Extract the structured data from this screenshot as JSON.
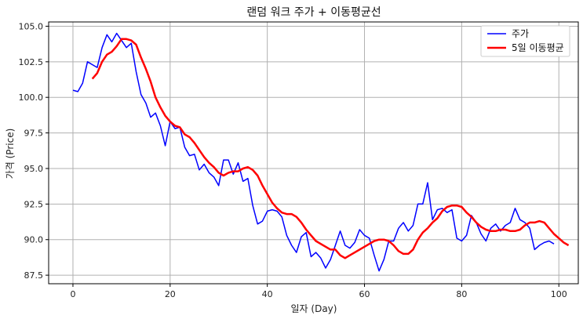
{
  "chart_data": {
    "type": "line",
    "title": "랜덤 워크 주가 + 이동평균선",
    "xlabel": "일자 (Day)",
    "ylabel": "가격 (Price)",
    "xlim": [
      -5,
      104
    ],
    "ylim": [
      86.9,
      105.3
    ],
    "xticks": [
      0,
      20,
      40,
      60,
      80,
      100
    ],
    "yticks": [
      87.5,
      90.0,
      92.5,
      95.0,
      97.5,
      100.0,
      102.5,
      105.0
    ],
    "grid": true,
    "legend_position": "top-right",
    "series": [
      {
        "name": "주가",
        "color": "#0000ff",
        "x_start": 0,
        "values": [
          100.5,
          100.4,
          101.0,
          102.5,
          102.3,
          102.1,
          103.5,
          104.4,
          103.9,
          104.5,
          104.0,
          103.5,
          103.8,
          101.8,
          100.2,
          99.6,
          98.6,
          98.9,
          98.0,
          96.6,
          98.3,
          97.8,
          97.9,
          96.5,
          95.9,
          96.0,
          94.9,
          95.3,
          94.7,
          94.4,
          93.8,
          95.6,
          95.6,
          94.6,
          95.4,
          94.1,
          94.3,
          92.4,
          91.1,
          91.3,
          92.0,
          92.1,
          92.0,
          91.6,
          90.3,
          89.6,
          89.1,
          90.2,
          90.5,
          88.8,
          89.1,
          88.7,
          88.0,
          88.6,
          89.6,
          90.6,
          89.6,
          89.4,
          89.8,
          90.7,
          90.3,
          90.1,
          88.9,
          87.8,
          88.6,
          89.9,
          89.9,
          90.8,
          91.2,
          90.6,
          91.0,
          92.5,
          92.5,
          94.0,
          91.4,
          92.1,
          92.2,
          91.9,
          92.1,
          90.1,
          89.9,
          90.3,
          91.7,
          91.2,
          90.4,
          89.9,
          90.8,
          91.1,
          90.6,
          91.0,
          91.2,
          92.2,
          91.4,
          91.2,
          90.8,
          89.3,
          89.6,
          89.8,
          89.9,
          89.7
        ]
      },
      {
        "name": "5일 이동평균",
        "color": "#ff0000",
        "x_start": 4,
        "values": [
          101.3,
          101.7,
          102.5,
          103.0,
          103.2,
          103.6,
          104.1,
          104.1,
          104.0,
          103.7,
          102.8,
          102.0,
          101.1,
          100.0,
          99.3,
          98.7,
          98.3,
          98.0,
          97.9,
          97.4,
          97.2,
          96.8,
          96.3,
          95.8,
          95.4,
          95.1,
          94.7,
          94.5,
          94.7,
          94.8,
          94.8,
          95.0,
          95.1,
          94.9,
          94.5,
          93.8,
          93.2,
          92.6,
          92.2,
          91.9,
          91.8,
          91.8,
          91.6,
          91.2,
          90.7,
          90.3,
          89.9,
          89.7,
          89.5,
          89.3,
          89.3,
          88.9,
          88.7,
          88.9,
          89.1,
          89.3,
          89.5,
          89.7,
          89.9,
          90.0,
          90.0,
          89.9,
          89.6,
          89.2,
          89.0,
          89.0,
          89.3,
          90.0,
          90.5,
          90.8,
          91.2,
          91.5,
          92.0,
          92.3,
          92.4,
          92.4,
          92.3,
          91.9,
          91.6,
          91.2,
          90.9,
          90.7,
          90.6,
          90.6,
          90.7,
          90.7,
          90.6,
          90.6,
          90.7,
          91.0,
          91.2,
          91.2,
          91.3,
          91.2,
          90.8,
          90.4,
          90.1,
          89.8,
          89.6
        ]
      }
    ]
  }
}
